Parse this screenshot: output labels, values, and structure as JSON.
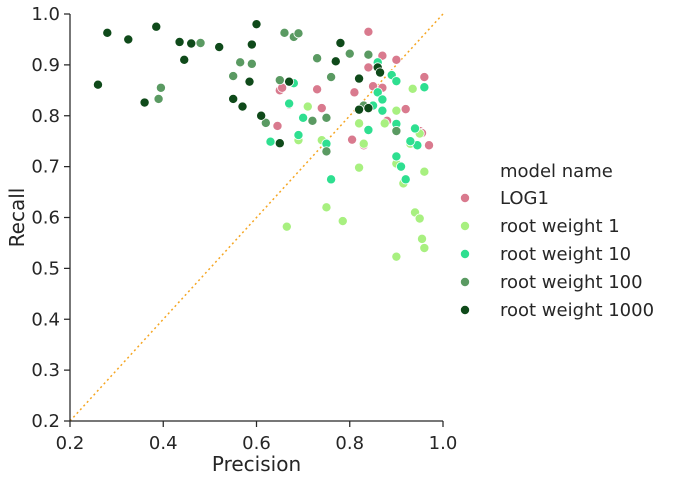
{
  "chart_data": {
    "type": "scatter",
    "title": "",
    "xlabel": "Precision",
    "ylabel": "Recall",
    "xlim": [
      0.2,
      1.0
    ],
    "ylim": [
      0.2,
      1.0
    ],
    "xticks": [
      "0.2",
      "0.4",
      "0.6",
      "0.8",
      "1.0"
    ],
    "yticks": [
      "0.2",
      "0.3",
      "0.4",
      "0.5",
      "0.6",
      "0.7",
      "0.8",
      "0.9",
      "1.0"
    ],
    "grid": false,
    "reference_line": {
      "style": "dotted",
      "color": "#f5a623",
      "from": [
        0.2,
        0.2
      ],
      "to": [
        1.0,
        1.0
      ]
    },
    "legend": {
      "title": "model name",
      "placement": "right",
      "entries": [
        "LOG1",
        "root weight 1",
        "root weight 10",
        "root weight 100",
        "root weight 1000"
      ]
    },
    "series": [
      {
        "name": "LOG1",
        "color": "#d97a8e",
        "points": [
          [
            0.84,
            0.965
          ],
          [
            0.9,
            0.91
          ],
          [
            0.87,
            0.918
          ],
          [
            0.84,
            0.895
          ],
          [
            0.86,
            0.895
          ],
          [
            0.85,
            0.858
          ],
          [
            0.87,
            0.855
          ],
          [
            0.81,
            0.846
          ],
          [
            0.73,
            0.852
          ],
          [
            0.65,
            0.85
          ],
          [
            0.655,
            0.855
          ],
          [
            0.74,
            0.815
          ],
          [
            0.67,
            0.822
          ],
          [
            0.96,
            0.876
          ],
          [
            0.92,
            0.813
          ],
          [
            0.88,
            0.79
          ],
          [
            0.95,
            0.77
          ],
          [
            0.955,
            0.766
          ],
          [
            0.97,
            0.742
          ],
          [
            0.905,
            0.703
          ],
          [
            0.645,
            0.78
          ],
          [
            0.805,
            0.753
          ],
          [
            0.83,
            0.742
          ]
        ]
      },
      {
        "name": "root weight 1",
        "color": "#a8f080",
        "points": [
          [
            0.71,
            0.818
          ],
          [
            0.69,
            0.752
          ],
          [
            0.74,
            0.752
          ],
          [
            0.82,
            0.785
          ],
          [
            0.83,
            0.745
          ],
          [
            0.875,
            0.785
          ],
          [
            0.9,
            0.81
          ],
          [
            0.935,
            0.853
          ],
          [
            0.95,
            0.765
          ],
          [
            0.96,
            0.69
          ],
          [
            0.93,
            0.745
          ],
          [
            0.9,
            0.706
          ],
          [
            0.915,
            0.667
          ],
          [
            0.82,
            0.698
          ],
          [
            0.75,
            0.62
          ],
          [
            0.785,
            0.593
          ],
          [
            0.665,
            0.582
          ],
          [
            0.94,
            0.61
          ],
          [
            0.95,
            0.598
          ],
          [
            0.955,
            0.558
          ],
          [
            0.96,
            0.54
          ],
          [
            0.9,
            0.523
          ]
        ]
      },
      {
        "name": "root weight 10",
        "color": "#2edf90",
        "points": [
          [
            0.86,
            0.905
          ],
          [
            0.89,
            0.88
          ],
          [
            0.9,
            0.868
          ],
          [
            0.86,
            0.846
          ],
          [
            0.87,
            0.832
          ],
          [
            0.87,
            0.81
          ],
          [
            0.85,
            0.82
          ],
          [
            0.96,
            0.856
          ],
          [
            0.9,
            0.784
          ],
          [
            0.94,
            0.775
          ],
          [
            0.945,
            0.742
          ],
          [
            0.93,
            0.75
          ],
          [
            0.84,
            0.772
          ],
          [
            0.75,
            0.745
          ],
          [
            0.7,
            0.796
          ],
          [
            0.69,
            0.762
          ],
          [
            0.67,
            0.824
          ],
          [
            0.63,
            0.749
          ],
          [
            0.68,
            0.864
          ],
          [
            0.76,
            0.675
          ],
          [
            0.9,
            0.72
          ],
          [
            0.91,
            0.7
          ],
          [
            0.92,
            0.675
          ]
        ]
      },
      {
        "name": "root weight 100",
        "color": "#5a9a62",
        "points": [
          [
            0.66,
            0.963
          ],
          [
            0.68,
            0.955
          ],
          [
            0.69,
            0.962
          ],
          [
            0.48,
            0.943
          ],
          [
            0.39,
            0.833
          ],
          [
            0.395,
            0.855
          ],
          [
            0.55,
            0.878
          ],
          [
            0.565,
            0.905
          ],
          [
            0.59,
            0.902
          ],
          [
            0.65,
            0.87
          ],
          [
            0.73,
            0.913
          ],
          [
            0.8,
            0.922
          ],
          [
            0.84,
            0.92
          ],
          [
            0.76,
            0.876
          ],
          [
            0.83,
            0.82
          ],
          [
            0.9,
            0.77
          ],
          [
            0.72,
            0.79
          ],
          [
            0.75,
            0.796
          ],
          [
            0.75,
            0.73
          ],
          [
            0.62,
            0.786
          ]
        ]
      },
      {
        "name": "root weight 1000",
        "color": "#0f4a1a",
        "points": [
          [
            0.28,
            0.963
          ],
          [
            0.325,
            0.95
          ],
          [
            0.385,
            0.975
          ],
          [
            0.435,
            0.945
          ],
          [
            0.46,
            0.942
          ],
          [
            0.52,
            0.935
          ],
          [
            0.59,
            0.94
          ],
          [
            0.6,
            0.98
          ],
          [
            0.78,
            0.943
          ],
          [
            0.77,
            0.907
          ],
          [
            0.86,
            0.895
          ],
          [
            0.865,
            0.885
          ],
          [
            0.82,
            0.873
          ],
          [
            0.67,
            0.867
          ],
          [
            0.585,
            0.867
          ],
          [
            0.445,
            0.91
          ],
          [
            0.26,
            0.861
          ],
          [
            0.36,
            0.826
          ],
          [
            0.55,
            0.833
          ],
          [
            0.57,
            0.818
          ],
          [
            0.61,
            0.8
          ],
          [
            0.65,
            0.746
          ],
          [
            0.84,
            0.815
          ],
          [
            0.82,
            0.812
          ]
        ]
      }
    ]
  }
}
